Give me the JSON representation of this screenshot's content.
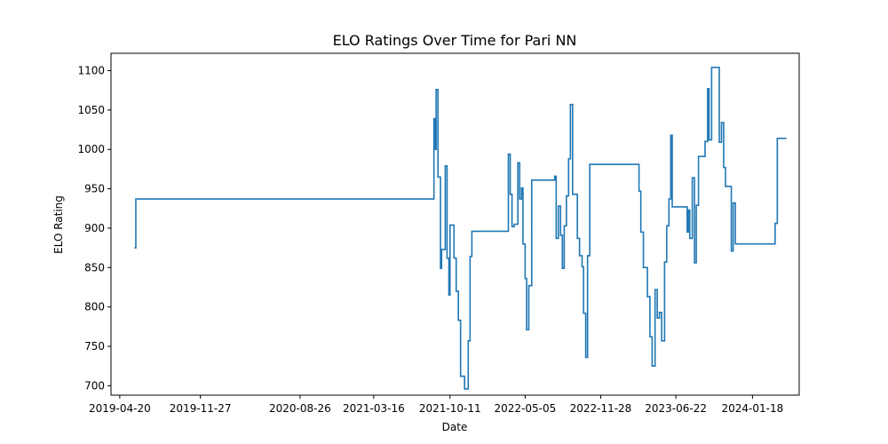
{
  "chart_data": {
    "type": "line",
    "title": "ELO Ratings Over Time for Pari NN",
    "xlabel": "Date",
    "ylabel": "ELO Rating",
    "x_axis_type": "date",
    "xlim": [
      "2019-03-27",
      "2024-05-25"
    ],
    "ylim": [
      688,
      1122
    ],
    "grid": false,
    "legend": "none",
    "x_ticks": [
      "2019-04-20",
      "2019-11-27",
      "2020-08-26",
      "2021-03-16",
      "2021-10-11",
      "2022-05-05",
      "2022-11-28",
      "2023-06-22",
      "2024-01-18"
    ],
    "y_ticks": [
      700,
      750,
      800,
      850,
      900,
      950,
      1000,
      1050,
      1100
    ],
    "series": [
      {
        "color": "#1f77b4",
        "step": true,
        "points": [
          [
            "2019-05-30",
            875
          ],
          [
            "2019-06-03",
            937
          ],
          [
            "2021-08-22",
            937
          ],
          [
            "2021-08-28",
            1039
          ],
          [
            "2021-09-01",
            1000
          ],
          [
            "2021-09-03",
            1076
          ],
          [
            "2021-09-08",
            965
          ],
          [
            "2021-09-15",
            849
          ],
          [
            "2021-09-18",
            873
          ],
          [
            "2021-09-28",
            979
          ],
          [
            "2021-10-03",
            862
          ],
          [
            "2021-10-08",
            815
          ],
          [
            "2021-10-11",
            904
          ],
          [
            "2021-10-22",
            862
          ],
          [
            "2021-10-28",
            820
          ],
          [
            "2021-11-03",
            783
          ],
          [
            "2021-11-09",
            712
          ],
          [
            "2021-11-20",
            696
          ],
          [
            "2021-11-30",
            757
          ],
          [
            "2021-12-05",
            864
          ],
          [
            "2021-12-10",
            896
          ],
          [
            "2022-03-20",
            994
          ],
          [
            "2022-03-25",
            943
          ],
          [
            "2022-03-30",
            902
          ],
          [
            "2022-04-05",
            905
          ],
          [
            "2022-04-15",
            983
          ],
          [
            "2022-04-20",
            937
          ],
          [
            "2022-04-25",
            951
          ],
          [
            "2022-04-29",
            880
          ],
          [
            "2022-05-05",
            836
          ],
          [
            "2022-05-09",
            771
          ],
          [
            "2022-05-15",
            827
          ],
          [
            "2022-05-23",
            961
          ],
          [
            "2022-07-25",
            966
          ],
          [
            "2022-07-29",
            887
          ],
          [
            "2022-08-04",
            928
          ],
          [
            "2022-08-10",
            891
          ],
          [
            "2022-08-15",
            849
          ],
          [
            "2022-08-20",
            903
          ],
          [
            "2022-08-26",
            941
          ],
          [
            "2022-09-01",
            988
          ],
          [
            "2022-09-06",
            1057
          ],
          [
            "2022-09-12",
            943
          ],
          [
            "2022-09-25",
            887
          ],
          [
            "2022-10-01",
            865
          ],
          [
            "2022-10-08",
            851
          ],
          [
            "2022-10-12",
            792
          ],
          [
            "2022-10-18",
            736
          ],
          [
            "2022-10-23",
            865
          ],
          [
            "2022-10-29",
            981
          ],
          [
            "2023-03-13",
            947
          ],
          [
            "2023-03-18",
            895
          ],
          [
            "2023-03-25",
            850
          ],
          [
            "2023-04-05",
            813
          ],
          [
            "2023-04-12",
            762
          ],
          [
            "2023-04-18",
            725
          ],
          [
            "2023-04-26",
            822
          ],
          [
            "2023-05-02",
            786
          ],
          [
            "2023-05-08",
            793
          ],
          [
            "2023-05-14",
            757
          ],
          [
            "2023-05-22",
            857
          ],
          [
            "2023-05-28",
            903
          ],
          [
            "2023-06-03",
            937
          ],
          [
            "2023-06-08",
            1018
          ],
          [
            "2023-06-12",
            927
          ],
          [
            "2023-07-23",
            895
          ],
          [
            "2023-07-26",
            923
          ],
          [
            "2023-07-30",
            887
          ],
          [
            "2023-08-06",
            964
          ],
          [
            "2023-08-12",
            856
          ],
          [
            "2023-08-17",
            929
          ],
          [
            "2023-08-23",
            991
          ],
          [
            "2023-09-10",
            1010
          ],
          [
            "2023-09-17",
            1077
          ],
          [
            "2023-09-21",
            1012
          ],
          [
            "2023-09-28",
            1104
          ],
          [
            "2023-10-19",
            1009
          ],
          [
            "2023-10-25",
            1034
          ],
          [
            "2023-10-31",
            977
          ],
          [
            "2023-11-05",
            953
          ],
          [
            "2023-11-21",
            871
          ],
          [
            "2023-11-26",
            932
          ],
          [
            "2023-12-02",
            880
          ],
          [
            "2024-03-20",
            906
          ],
          [
            "2024-03-26",
            1014
          ],
          [
            "2024-04-20",
            1014
          ]
        ]
      }
    ]
  }
}
